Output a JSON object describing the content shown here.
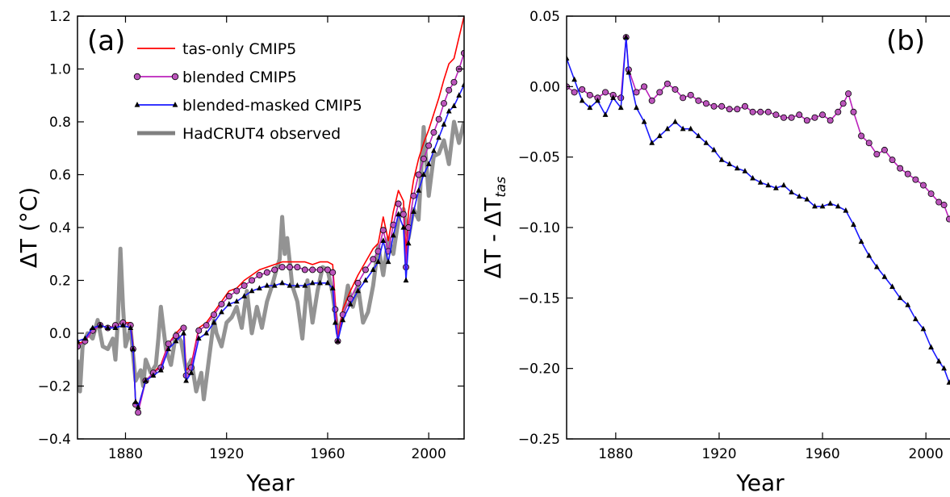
{
  "chart_data": [
    {
      "type": "line",
      "panel_label": "(a)",
      "xlabel": "Year",
      "ylabel": "ΔT (°C)",
      "xlim": [
        1861,
        2014
      ],
      "ylim": [
        -0.4,
        1.2
      ],
      "xticks": [
        1880,
        1920,
        1960,
        2000
      ],
      "yticks": [
        -0.4,
        -0.2,
        0.0,
        0.2,
        0.4,
        0.6,
        0.8,
        1.0,
        1.2
      ],
      "ytick_labels": [
        "−0.4",
        "−0.2",
        "0.0",
        "0.2",
        "0.4",
        "0.6",
        "0.8",
        "1.0",
        "1.2"
      ],
      "grid": false,
      "legend_position": "top-left",
      "series": [
        {
          "name": "tas-only CMIP5",
          "color": "#ff0000",
          "marker": "none",
          "x": [
            1861,
            1864,
            1867,
            1870,
            1873,
            1876,
            1879,
            1882,
            1883,
            1884,
            1885,
            1888,
            1891,
            1894,
            1897,
            1900,
            1903,
            1904,
            1906,
            1909,
            1912,
            1915,
            1918,
            1921,
            1924,
            1927,
            1930,
            1933,
            1936,
            1939,
            1942,
            1945,
            1948,
            1951,
            1954,
            1957,
            1960,
            1962,
            1963,
            1964,
            1966,
            1969,
            1972,
            1975,
            1978,
            1980,
            1982,
            1984,
            1986,
            1988,
            1990,
            1991,
            1992,
            1994,
            1996,
            1998,
            2000,
            2002,
            2004,
            2006,
            2008,
            2010,
            2012,
            2014
          ],
          "y": [
            -0.04,
            -0.03,
            0.01,
            0.03,
            0.02,
            0.03,
            0.04,
            0.04,
            -0.05,
            -0.26,
            -0.28,
            -0.18,
            -0.15,
            -0.12,
            -0.04,
            0.0,
            0.03,
            -0.14,
            -0.12,
            0.02,
            0.04,
            0.08,
            0.12,
            0.16,
            0.17,
            0.2,
            0.22,
            0.24,
            0.25,
            0.26,
            0.27,
            0.27,
            0.27,
            0.27,
            0.26,
            0.27,
            0.27,
            0.26,
            0.12,
            -0.02,
            0.09,
            0.16,
            0.22,
            0.27,
            0.32,
            0.34,
            0.44,
            0.35,
            0.46,
            0.54,
            0.5,
            0.3,
            0.46,
            0.58,
            0.66,
            0.72,
            0.77,
            0.83,
            0.89,
            0.96,
            1.02,
            1.04,
            1.12,
            1.2
          ]
        },
        {
          "name": "blended CMIP5",
          "color": "#bb22bb",
          "marker": "circle",
          "x": [
            1861,
            1864,
            1867,
            1870,
            1873,
            1876,
            1879,
            1882,
            1883,
            1884,
            1885,
            1888,
            1891,
            1894,
            1897,
            1900,
            1903,
            1904,
            1906,
            1909,
            1912,
            1915,
            1918,
            1921,
            1924,
            1927,
            1930,
            1933,
            1936,
            1939,
            1942,
            1945,
            1948,
            1951,
            1954,
            1957,
            1960,
            1962,
            1963,
            1964,
            1966,
            1969,
            1972,
            1975,
            1978,
            1980,
            1982,
            1984,
            1986,
            1988,
            1990,
            1991,
            1992,
            1994,
            1996,
            1998,
            2000,
            2002,
            2004,
            2006,
            2008,
            2010,
            2012,
            2014
          ],
          "y": [
            -0.05,
            -0.03,
            0.01,
            0.03,
            0.02,
            0.03,
            0.04,
            0.03,
            -0.06,
            -0.27,
            -0.3,
            -0.18,
            -0.15,
            -0.13,
            -0.04,
            -0.01,
            0.02,
            -0.16,
            -0.13,
            0.01,
            0.03,
            0.07,
            0.11,
            0.14,
            0.16,
            0.18,
            0.2,
            0.22,
            0.23,
            0.24,
            0.25,
            0.25,
            0.25,
            0.24,
            0.24,
            0.24,
            0.24,
            0.23,
            0.09,
            -0.03,
            0.07,
            0.13,
            0.19,
            0.24,
            0.28,
            0.31,
            0.39,
            0.31,
            0.41,
            0.49,
            0.45,
            0.25,
            0.4,
            0.52,
            0.6,
            0.66,
            0.71,
            0.76,
            0.81,
            0.87,
            0.92,
            0.95,
            1.0,
            1.06
          ]
        },
        {
          "name": "blended-masked CMIP5",
          "color": "#1a1aff",
          "marker": "triangle",
          "x": [
            1861,
            1864,
            1867,
            1870,
            1873,
            1876,
            1879,
            1882,
            1883,
            1884,
            1885,
            1888,
            1891,
            1894,
            1897,
            1900,
            1903,
            1904,
            1906,
            1909,
            1912,
            1915,
            1918,
            1921,
            1924,
            1927,
            1930,
            1933,
            1936,
            1939,
            1942,
            1945,
            1948,
            1951,
            1954,
            1957,
            1960,
            1962,
            1963,
            1964,
            1966,
            1969,
            1972,
            1975,
            1978,
            1980,
            1982,
            1984,
            1986,
            1988,
            1990,
            1991,
            1992,
            1994,
            1996,
            1998,
            2000,
            2002,
            2004,
            2006,
            2008,
            2010,
            2012,
            2014
          ],
          "y": [
            -0.03,
            -0.02,
            0.02,
            0.03,
            0.02,
            0.02,
            0.03,
            0.02,
            -0.06,
            -0.26,
            -0.28,
            -0.18,
            -0.16,
            -0.14,
            -0.06,
            -0.03,
            0.0,
            -0.18,
            -0.15,
            -0.02,
            0.0,
            0.04,
            0.08,
            0.11,
            0.12,
            0.14,
            0.16,
            0.17,
            0.18,
            0.18,
            0.19,
            0.18,
            0.18,
            0.18,
            0.19,
            0.19,
            0.19,
            0.17,
            0.04,
            -0.03,
            0.05,
            0.11,
            0.16,
            0.2,
            0.24,
            0.27,
            0.35,
            0.27,
            0.37,
            0.45,
            0.4,
            0.2,
            0.34,
            0.46,
            0.54,
            0.6,
            0.64,
            0.69,
            0.74,
            0.79,
            0.84,
            0.86,
            0.9,
            0.94
          ]
        },
        {
          "name": "HadCRUT4 observed",
          "color": "#808080",
          "marker": "none",
          "x": [
            1861,
            1862,
            1863,
            1865,
            1867,
            1869,
            1871,
            1873,
            1875,
            1876,
            1877,
            1878,
            1879,
            1880,
            1882,
            1884,
            1886,
            1887,
            1888,
            1890,
            1892,
            1893,
            1894,
            1896,
            1898,
            1900,
            1902,
            1904,
            1906,
            1908,
            1910,
            1911,
            1913,
            1915,
            1916,
            1918,
            1920,
            1922,
            1924,
            1926,
            1928,
            1930,
            1932,
            1934,
            1936,
            1938,
            1940,
            1941,
            1942,
            1943,
            1944,
            1946,
            1948,
            1950,
            1952,
            1954,
            1956,
            1958,
            1960,
            1962,
            1964,
            1966,
            1968,
            1970,
            1972,
            1974,
            1976,
            1978,
            1980,
            1982,
            1984,
            1986,
            1988,
            1990,
            1992,
            1994,
            1996,
            1998,
            2000,
            2002,
            2004,
            2006,
            2008,
            2010,
            2012,
            2014
          ],
          "y": [
            -0.1,
            -0.22,
            -0.05,
            0.0,
            -0.02,
            0.05,
            -0.05,
            -0.06,
            -0.02,
            -0.1,
            0.05,
            0.32,
            0.1,
            -0.05,
            0.02,
            -0.18,
            -0.14,
            -0.2,
            -0.1,
            -0.15,
            -0.12,
            -0.02,
            0.1,
            -0.06,
            -0.12,
            0.0,
            -0.03,
            -0.14,
            -0.1,
            -0.22,
            -0.15,
            -0.25,
            -0.1,
            0.05,
            0.0,
            -0.05,
            0.04,
            0.06,
            0.1,
            0.02,
            0.16,
            0.0,
            0.1,
            0.02,
            0.12,
            0.18,
            0.25,
            0.28,
            0.44,
            0.3,
            0.36,
            0.18,
            0.12,
            -0.02,
            0.2,
            0.04,
            0.16,
            0.25,
            0.24,
            0.15,
            0.0,
            0.06,
            0.18,
            0.1,
            0.18,
            0.04,
            0.08,
            0.18,
            0.33,
            0.22,
            0.36,
            0.3,
            0.43,
            0.47,
            0.36,
            0.47,
            0.43,
            0.78,
            0.52,
            0.67,
            0.68,
            0.73,
            0.64,
            0.8,
            0.72,
            0.8
          ]
        }
      ]
    },
    {
      "type": "line",
      "panel_label": "(b)",
      "xlabel": "Year",
      "ylabel": "ΔT - ΔT",
      "ylabel_subscript": "tas",
      "xlim": [
        1861,
        2014
      ],
      "ylim": [
        -0.25,
        0.05
      ],
      "xticks": [
        1880,
        1920,
        1960,
        2000
      ],
      "yticks": [
        -0.25,
        -0.2,
        -0.15,
        -0.1,
        -0.05,
        0.0,
        0.05
      ],
      "ytick_labels": [
        "−0.25",
        "−0.20",
        "−0.15",
        "−0.10",
        "−0.05",
        "0.00",
        "0.05"
      ],
      "grid": false,
      "series": [
        {
          "name": "blended CMIP5",
          "color": "#bb22bb",
          "marker": "circle",
          "x": [
            1861,
            1864,
            1867,
            1870,
            1873,
            1876,
            1879,
            1882,
            1884,
            1885,
            1888,
            1891,
            1894,
            1897,
            1900,
            1903,
            1906,
            1909,
            1912,
            1915,
            1918,
            1921,
            1924,
            1927,
            1930,
            1933,
            1936,
            1939,
            1942,
            1945,
            1948,
            1951,
            1954,
            1957,
            1960,
            1963,
            1966,
            1968,
            1970,
            1972,
            1975,
            1978,
            1981,
            1984,
            1987,
            1990,
            1993,
            1996,
            1999,
            2002,
            2005,
            2007,
            2009,
            2011,
            2014
          ],
          "y": [
            0.0,
            -0.004,
            -0.002,
            -0.006,
            -0.008,
            -0.004,
            -0.006,
            -0.008,
            0.035,
            0.012,
            -0.004,
            0.0,
            -0.01,
            -0.004,
            0.002,
            -0.002,
            -0.008,
            -0.006,
            -0.01,
            -0.012,
            -0.014,
            -0.014,
            -0.016,
            -0.016,
            -0.014,
            -0.018,
            -0.018,
            -0.018,
            -0.02,
            -0.022,
            -0.022,
            -0.02,
            -0.024,
            -0.022,
            -0.02,
            -0.024,
            -0.018,
            -0.012,
            -0.005,
            -0.018,
            -0.035,
            -0.04,
            -0.048,
            -0.045,
            -0.052,
            -0.058,
            -0.062,
            -0.066,
            -0.07,
            -0.076,
            -0.082,
            -0.084,
            -0.094,
            -0.098,
            -0.096
          ]
        },
        {
          "name": "blended-masked CMIP5",
          "color": "#1a1aff",
          "marker": "triangle",
          "x": [
            1861,
            1864,
            1867,
            1870,
            1873,
            1876,
            1879,
            1882,
            1884,
            1885,
            1888,
            1891,
            1894,
            1897,
            1900,
            1903,
            1906,
            1909,
            1912,
            1915,
            1918,
            1921,
            1924,
            1927,
            1930,
            1933,
            1936,
            1939,
            1942,
            1945,
            1948,
            1951,
            1954,
            1957,
            1960,
            1963,
            1966,
            1969,
            1972,
            1975,
            1978,
            1981,
            1984,
            1987,
            1990,
            1993,
            1996,
            1999,
            2002,
            2005,
            2007,
            2009,
            2011,
            2014
          ],
          "y": [
            0.02,
            0.005,
            -0.01,
            -0.015,
            -0.01,
            -0.02,
            -0.008,
            -0.015,
            0.035,
            0.01,
            -0.015,
            -0.025,
            -0.04,
            -0.035,
            -0.03,
            -0.025,
            -0.03,
            -0.03,
            -0.035,
            -0.04,
            -0.045,
            -0.052,
            -0.055,
            -0.058,
            -0.06,
            -0.065,
            -0.068,
            -0.07,
            -0.072,
            -0.07,
            -0.075,
            -0.078,
            -0.08,
            -0.085,
            -0.085,
            -0.083,
            -0.085,
            -0.088,
            -0.098,
            -0.11,
            -0.12,
            -0.128,
            -0.135,
            -0.142,
            -0.15,
            -0.155,
            -0.165,
            -0.172,
            -0.185,
            -0.195,
            -0.2,
            -0.21,
            -0.212,
            -0.214
          ]
        }
      ]
    }
  ]
}
